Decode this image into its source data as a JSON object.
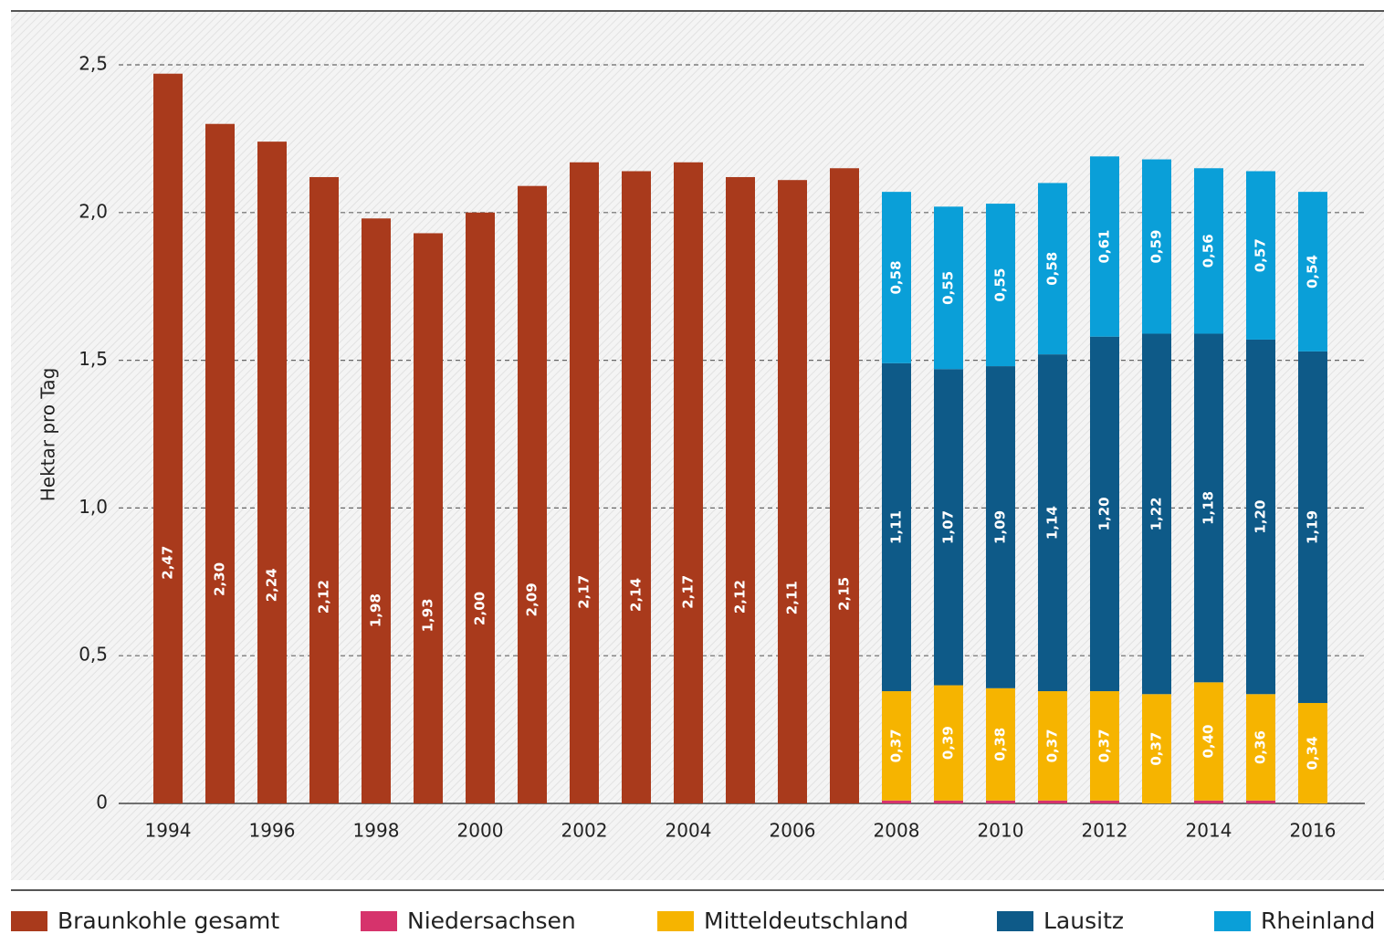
{
  "chart_data": {
    "type": "stacked-bar",
    "y_label": "Hektar pro Tag",
    "categories": [
      "1994",
      null,
      "1996",
      null,
      "1998",
      null,
      "2000",
      null,
      "2002",
      null,
      "2004",
      null,
      "2006",
      null,
      "2008",
      null,
      "2010",
      null,
      "2012",
      null,
      "2014",
      null,
      "2016"
    ],
    "series": [
      {
        "name": "Braunkohle gesamt",
        "color": "#a93a1c",
        "values": [
          2.47,
          2.3,
          2.24,
          2.12,
          1.98,
          1.93,
          2.0,
          2.09,
          2.17,
          2.14,
          2.17,
          2.12,
          2.11,
          2.15,
          null,
          null,
          null,
          null,
          null,
          null,
          null,
          null,
          null
        ],
        "value_labels": [
          "2,47",
          "2,30",
          "2,24",
          "2,12",
          "1,98",
          "1,93",
          "2,00",
          "2,09",
          "2,17",
          "2,14",
          "2,17",
          "2,12",
          "2,11",
          "2,15",
          null,
          null,
          null,
          null,
          null,
          null,
          null,
          null,
          null
        ]
      },
      {
        "name": "Niedersachsen",
        "color": "#d6336c",
        "values": [
          null,
          null,
          null,
          null,
          null,
          null,
          null,
          null,
          null,
          null,
          null,
          null,
          null,
          null,
          0.01,
          0.01,
          0.01,
          0.01,
          0.01,
          null,
          0.01,
          0.01,
          null
        ]
      },
      {
        "name": "Mitteldeutschland",
        "color": "#f6b400",
        "values": [
          null,
          null,
          null,
          null,
          null,
          null,
          null,
          null,
          null,
          null,
          null,
          null,
          null,
          null,
          0.37,
          0.39,
          0.38,
          0.37,
          0.37,
          0.37,
          0.4,
          0.36,
          0.34
        ],
        "value_labels": [
          null,
          null,
          null,
          null,
          null,
          null,
          null,
          null,
          null,
          null,
          null,
          null,
          null,
          null,
          "0,37",
          "0,39",
          "0,38",
          "0,37",
          "0,37",
          "0,37",
          "0,40",
          "0,36",
          "0,34"
        ]
      },
      {
        "name": "Lausitz",
        "color": "#0e5a88",
        "values": [
          null,
          null,
          null,
          null,
          null,
          null,
          null,
          null,
          null,
          null,
          null,
          null,
          null,
          null,
          1.11,
          1.07,
          1.09,
          1.14,
          1.2,
          1.22,
          1.18,
          1.2,
          1.19
        ],
        "value_labels": [
          null,
          null,
          null,
          null,
          null,
          null,
          null,
          null,
          null,
          null,
          null,
          null,
          null,
          null,
          "1,11",
          "1,07",
          "1,09",
          "1,14",
          "1,20",
          "1,22",
          "1,18",
          "1,20",
          "1,19"
        ]
      },
      {
        "name": "Rheinland",
        "color": "#0a9fd8",
        "values": [
          null,
          null,
          null,
          null,
          null,
          null,
          null,
          null,
          null,
          null,
          null,
          null,
          null,
          null,
          0.58,
          0.55,
          0.55,
          0.58,
          0.61,
          0.59,
          0.56,
          0.57,
          0.54
        ],
        "value_labels": [
          null,
          null,
          null,
          null,
          null,
          null,
          null,
          null,
          null,
          null,
          null,
          null,
          null,
          null,
          "0,58",
          "0,55",
          "0,55",
          "0,58",
          "0,61",
          "0,59",
          "0,56",
          "0,57",
          "0,54"
        ]
      }
    ],
    "ylim": [
      0,
      2.5
    ],
    "yticks": [
      0,
      {
        "value": 0.5,
        "label": "0,5"
      },
      {
        "value": 1.0,
        "label": "1,0"
      },
      {
        "value": 1.5,
        "label": "1,5"
      },
      {
        "value": 2.0,
        "label": "2,0"
      },
      {
        "value": 2.5,
        "label": "2,5"
      }
    ],
    "grid": true,
    "legend": "bottom"
  }
}
